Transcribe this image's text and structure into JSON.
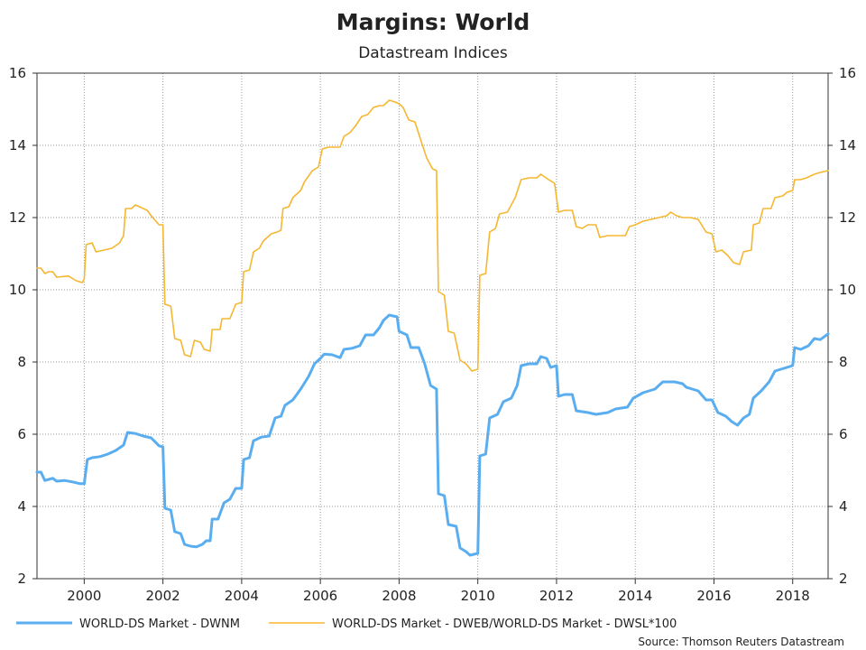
{
  "chart_data": {
    "type": "line",
    "title": "Margins: World",
    "subtitle": "Datastream Indices",
    "source": "Source: Thomson Reuters Datastream",
    "ylim": [
      2,
      16
    ],
    "yticks": [
      "2",
      "4",
      "6",
      "8",
      "10",
      "12",
      "14",
      "16"
    ],
    "xlim": [
      1998.8,
      2018.9
    ],
    "xticks": [
      "2000",
      "2002",
      "2004",
      "2006",
      "2008",
      "2010",
      "2012",
      "2014",
      "2016",
      "2018"
    ],
    "grid": true,
    "legend_position": "bottom",
    "series": [
      {
        "name": "WORLD-DS Market - DWNM",
        "color": "#5aaef0",
        "points": [
          [
            1998.8,
            4.95
          ],
          [
            1998.9,
            4.95
          ],
          [
            1999.0,
            4.72
          ],
          [
            1999.1,
            4.75
          ],
          [
            1999.2,
            4.78
          ],
          [
            1999.3,
            4.7
          ],
          [
            1999.5,
            4.72
          ],
          [
            1999.7,
            4.68
          ],
          [
            1999.9,
            4.63
          ],
          [
            2000.0,
            4.63
          ],
          [
            2000.08,
            5.3
          ],
          [
            2000.2,
            5.35
          ],
          [
            2000.4,
            5.38
          ],
          [
            2000.6,
            5.45
          ],
          [
            2000.8,
            5.55
          ],
          [
            2001.0,
            5.7
          ],
          [
            2001.1,
            6.05
          ],
          [
            2001.3,
            6.02
          ],
          [
            2001.5,
            5.95
          ],
          [
            2001.7,
            5.9
          ],
          [
            2001.9,
            5.68
          ],
          [
            2002.0,
            5.65
          ],
          [
            2002.05,
            3.95
          ],
          [
            2002.2,
            3.9
          ],
          [
            2002.3,
            3.3
          ],
          [
            2002.45,
            3.25
          ],
          [
            2002.55,
            2.95
          ],
          [
            2002.7,
            2.9
          ],
          [
            2002.85,
            2.88
          ],
          [
            2003.0,
            2.95
          ],
          [
            2003.1,
            3.05
          ],
          [
            2003.2,
            3.05
          ],
          [
            2003.25,
            3.65
          ],
          [
            2003.4,
            3.65
          ],
          [
            2003.55,
            4.1
          ],
          [
            2003.7,
            4.2
          ],
          [
            2003.85,
            4.5
          ],
          [
            2004.0,
            4.5
          ],
          [
            2004.05,
            5.3
          ],
          [
            2004.2,
            5.35
          ],
          [
            2004.3,
            5.82
          ],
          [
            2004.5,
            5.92
          ],
          [
            2004.7,
            5.95
          ],
          [
            2004.85,
            6.45
          ],
          [
            2005.0,
            6.5
          ],
          [
            2005.1,
            6.8
          ],
          [
            2005.3,
            6.95
          ],
          [
            2005.5,
            7.25
          ],
          [
            2005.7,
            7.6
          ],
          [
            2005.85,
            7.95
          ],
          [
            2006.0,
            8.1
          ],
          [
            2006.1,
            8.22
          ],
          [
            2006.3,
            8.2
          ],
          [
            2006.5,
            8.12
          ],
          [
            2006.6,
            8.35
          ],
          [
            2006.8,
            8.38
          ],
          [
            2007.0,
            8.45
          ],
          [
            2007.15,
            8.75
          ],
          [
            2007.35,
            8.75
          ],
          [
            2007.5,
            8.95
          ],
          [
            2007.6,
            9.15
          ],
          [
            2007.75,
            9.3
          ],
          [
            2007.95,
            9.25
          ],
          [
            2008.0,
            8.85
          ],
          [
            2008.2,
            8.75
          ],
          [
            2008.3,
            8.4
          ],
          [
            2008.5,
            8.4
          ],
          [
            2008.65,
            7.95
          ],
          [
            2008.8,
            7.35
          ],
          [
            2008.95,
            7.25
          ],
          [
            2009.0,
            4.35
          ],
          [
            2009.15,
            4.3
          ],
          [
            2009.25,
            3.5
          ],
          [
            2009.45,
            3.45
          ],
          [
            2009.55,
            2.85
          ],
          [
            2009.7,
            2.75
          ],
          [
            2009.8,
            2.65
          ],
          [
            2010.0,
            2.7
          ],
          [
            2010.05,
            5.4
          ],
          [
            2010.2,
            5.45
          ],
          [
            2010.3,
            6.45
          ],
          [
            2010.5,
            6.55
          ],
          [
            2010.65,
            6.9
          ],
          [
            2010.85,
            7.0
          ],
          [
            2011.0,
            7.35
          ],
          [
            2011.1,
            7.9
          ],
          [
            2011.3,
            7.95
          ],
          [
            2011.5,
            7.95
          ],
          [
            2011.6,
            8.15
          ],
          [
            2011.75,
            8.1
          ],
          [
            2011.85,
            7.85
          ],
          [
            2012.0,
            7.9
          ],
          [
            2012.05,
            7.05
          ],
          [
            2012.2,
            7.1
          ],
          [
            2012.4,
            7.1
          ],
          [
            2012.5,
            6.65
          ],
          [
            2012.8,
            6.6
          ],
          [
            2013.0,
            6.55
          ],
          [
            2013.3,
            6.6
          ],
          [
            2013.5,
            6.7
          ],
          [
            2013.8,
            6.75
          ],
          [
            2013.95,
            7.0
          ],
          [
            2014.2,
            7.15
          ],
          [
            2014.5,
            7.25
          ],
          [
            2014.7,
            7.45
          ],
          [
            2015.0,
            7.45
          ],
          [
            2015.2,
            7.4
          ],
          [
            2015.3,
            7.3
          ],
          [
            2015.6,
            7.2
          ],
          [
            2015.8,
            6.95
          ],
          [
            2015.95,
            6.95
          ],
          [
            2016.1,
            6.6
          ],
          [
            2016.3,
            6.5
          ],
          [
            2016.45,
            6.35
          ],
          [
            2016.6,
            6.25
          ],
          [
            2016.75,
            6.45
          ],
          [
            2016.9,
            6.55
          ],
          [
            2017.0,
            7.0
          ],
          [
            2017.2,
            7.2
          ],
          [
            2017.4,
            7.45
          ],
          [
            2017.55,
            7.75
          ],
          [
            2017.7,
            7.8
          ],
          [
            2017.85,
            7.85
          ],
          [
            2018.0,
            7.9
          ],
          [
            2018.05,
            8.4
          ],
          [
            2018.2,
            8.35
          ],
          [
            2018.4,
            8.45
          ],
          [
            2018.55,
            8.65
          ],
          [
            2018.7,
            8.62
          ],
          [
            2018.9,
            8.78
          ]
        ]
      },
      {
        "name": "WORLD-DS Market - DWEB/WORLD-DS Market - DWSL*100",
        "color": "#f5b731",
        "points": [
          [
            1998.8,
            10.6
          ],
          [
            1998.9,
            10.6
          ],
          [
            1999.0,
            10.45
          ],
          [
            1999.1,
            10.5
          ],
          [
            1999.2,
            10.5
          ],
          [
            1999.3,
            10.35
          ],
          [
            1999.6,
            10.38
          ],
          [
            1999.8,
            10.25
          ],
          [
            1999.95,
            10.2
          ],
          [
            2000.0,
            10.3
          ],
          [
            2000.05,
            11.25
          ],
          [
            2000.2,
            11.3
          ],
          [
            2000.3,
            11.05
          ],
          [
            2000.5,
            11.1
          ],
          [
            2000.7,
            11.15
          ],
          [
            2000.9,
            11.3
          ],
          [
            2001.0,
            11.5
          ],
          [
            2001.05,
            12.25
          ],
          [
            2001.2,
            12.25
          ],
          [
            2001.3,
            12.35
          ],
          [
            2001.5,
            12.25
          ],
          [
            2001.6,
            12.2
          ],
          [
            2001.7,
            12.05
          ],
          [
            2001.9,
            11.8
          ],
          [
            2002.0,
            11.8
          ],
          [
            2002.05,
            9.6
          ],
          [
            2002.2,
            9.55
          ],
          [
            2002.3,
            8.65
          ],
          [
            2002.45,
            8.6
          ],
          [
            2002.55,
            8.2
          ],
          [
            2002.7,
            8.15
          ],
          [
            2002.8,
            8.6
          ],
          [
            2002.95,
            8.55
          ],
          [
            2003.05,
            8.35
          ],
          [
            2003.2,
            8.3
          ],
          [
            2003.25,
            8.9
          ],
          [
            2003.45,
            8.9
          ],
          [
            2003.5,
            9.2
          ],
          [
            2003.7,
            9.2
          ],
          [
            2003.85,
            9.6
          ],
          [
            2004.0,
            9.65
          ],
          [
            2004.05,
            10.5
          ],
          [
            2004.2,
            10.55
          ],
          [
            2004.3,
            11.05
          ],
          [
            2004.45,
            11.15
          ],
          [
            2004.55,
            11.35
          ],
          [
            2004.75,
            11.55
          ],
          [
            2004.9,
            11.6
          ],
          [
            2005.0,
            11.65
          ],
          [
            2005.05,
            12.25
          ],
          [
            2005.2,
            12.3
          ],
          [
            2005.3,
            12.55
          ],
          [
            2005.5,
            12.75
          ],
          [
            2005.6,
            13.0
          ],
          [
            2005.8,
            13.3
          ],
          [
            2005.95,
            13.4
          ],
          [
            2006.05,
            13.9
          ],
          [
            2006.2,
            13.95
          ],
          [
            2006.3,
            13.95
          ],
          [
            2006.5,
            13.95
          ],
          [
            2006.6,
            14.25
          ],
          [
            2006.75,
            14.35
          ],
          [
            2006.9,
            14.55
          ],
          [
            2007.05,
            14.8
          ],
          [
            2007.2,
            14.85
          ],
          [
            2007.35,
            15.05
          ],
          [
            2007.5,
            15.1
          ],
          [
            2007.6,
            15.1
          ],
          [
            2007.75,
            15.25
          ],
          [
            2007.9,
            15.2
          ],
          [
            2008.0,
            15.15
          ],
          [
            2008.1,
            15.05
          ],
          [
            2008.25,
            14.7
          ],
          [
            2008.4,
            14.65
          ],
          [
            2008.55,
            14.15
          ],
          [
            2008.7,
            13.65
          ],
          [
            2008.85,
            13.35
          ],
          [
            2008.95,
            13.3
          ],
          [
            2009.0,
            9.95
          ],
          [
            2009.15,
            9.85
          ],
          [
            2009.25,
            8.85
          ],
          [
            2009.4,
            8.8
          ],
          [
            2009.55,
            8.05
          ],
          [
            2009.7,
            7.95
          ],
          [
            2009.85,
            7.75
          ],
          [
            2010.0,
            7.8
          ],
          [
            2010.05,
            10.4
          ],
          [
            2010.2,
            10.45
          ],
          [
            2010.3,
            11.6
          ],
          [
            2010.45,
            11.7
          ],
          [
            2010.55,
            12.1
          ],
          [
            2010.75,
            12.15
          ],
          [
            2010.95,
            12.55
          ],
          [
            2011.1,
            13.05
          ],
          [
            2011.3,
            13.1
          ],
          [
            2011.5,
            13.1
          ],
          [
            2011.6,
            13.2
          ],
          [
            2011.8,
            13.05
          ],
          [
            2011.95,
            12.95
          ],
          [
            2012.05,
            12.15
          ],
          [
            2012.2,
            12.2
          ],
          [
            2012.4,
            12.2
          ],
          [
            2012.5,
            11.75
          ],
          [
            2012.65,
            11.7
          ],
          [
            2012.8,
            11.8
          ],
          [
            2013.0,
            11.8
          ],
          [
            2013.1,
            11.45
          ],
          [
            2013.3,
            11.5
          ],
          [
            2013.5,
            11.5
          ],
          [
            2013.75,
            11.5
          ],
          [
            2013.85,
            11.75
          ],
          [
            2014.0,
            11.8
          ],
          [
            2014.2,
            11.9
          ],
          [
            2014.4,
            11.95
          ],
          [
            2014.6,
            12.0
          ],
          [
            2014.8,
            12.05
          ],
          [
            2014.9,
            12.15
          ],
          [
            2015.05,
            12.05
          ],
          [
            2015.2,
            12.0
          ],
          [
            2015.4,
            12.0
          ],
          [
            2015.6,
            11.95
          ],
          [
            2015.8,
            11.6
          ],
          [
            2015.95,
            11.55
          ],
          [
            2016.05,
            11.05
          ],
          [
            2016.2,
            11.1
          ],
          [
            2016.35,
            10.95
          ],
          [
            2016.5,
            10.75
          ],
          [
            2016.65,
            10.7
          ],
          [
            2016.75,
            11.05
          ],
          [
            2016.95,
            11.1
          ],
          [
            2017.0,
            11.8
          ],
          [
            2017.15,
            11.85
          ],
          [
            2017.25,
            12.25
          ],
          [
            2017.45,
            12.25
          ],
          [
            2017.55,
            12.55
          ],
          [
            2017.75,
            12.6
          ],
          [
            2017.85,
            12.7
          ],
          [
            2018.0,
            12.75
          ],
          [
            2018.05,
            13.05
          ],
          [
            2018.2,
            13.05
          ],
          [
            2018.35,
            13.1
          ],
          [
            2018.55,
            13.2
          ],
          [
            2018.7,
            13.25
          ],
          [
            2018.9,
            13.3
          ]
        ]
      }
    ]
  }
}
